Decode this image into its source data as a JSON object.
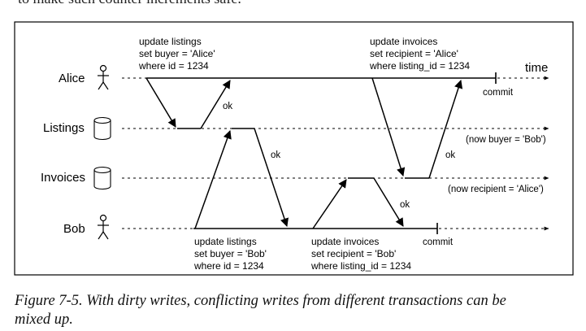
{
  "top_text": "to make such counter increments safe.",
  "time_label": "time",
  "lanes": {
    "alice": "Alice",
    "listings": "Listings",
    "invoices": "Invoices",
    "bob": "Bob"
  },
  "alice_listings": [
    "update listings",
    "set buyer = 'Alice'",
    "where id = 1234"
  ],
  "alice_invoices": [
    "update invoices",
    "set recipient = 'Alice'",
    "where listing_id = 1234"
  ],
  "bob_listings": [
    "update listings",
    "set buyer = 'Bob'",
    "where id = 1234"
  ],
  "bob_invoices": [
    "update invoices",
    "set recipient = 'Bob'",
    "where listing_id = 1234"
  ],
  "ok": "ok",
  "commit": "commit",
  "now_buyer": "(now buyer = 'Bob')",
  "now_recipient": "(now recipient = 'Alice')",
  "caption_line1": "Figure 7-5. With dirty writes, conflicting writes from different transactions can be",
  "caption_line2": "mixed up.",
  "icons": {
    "person": "stick-figure-icon",
    "database": "database-cylinder-icon"
  }
}
